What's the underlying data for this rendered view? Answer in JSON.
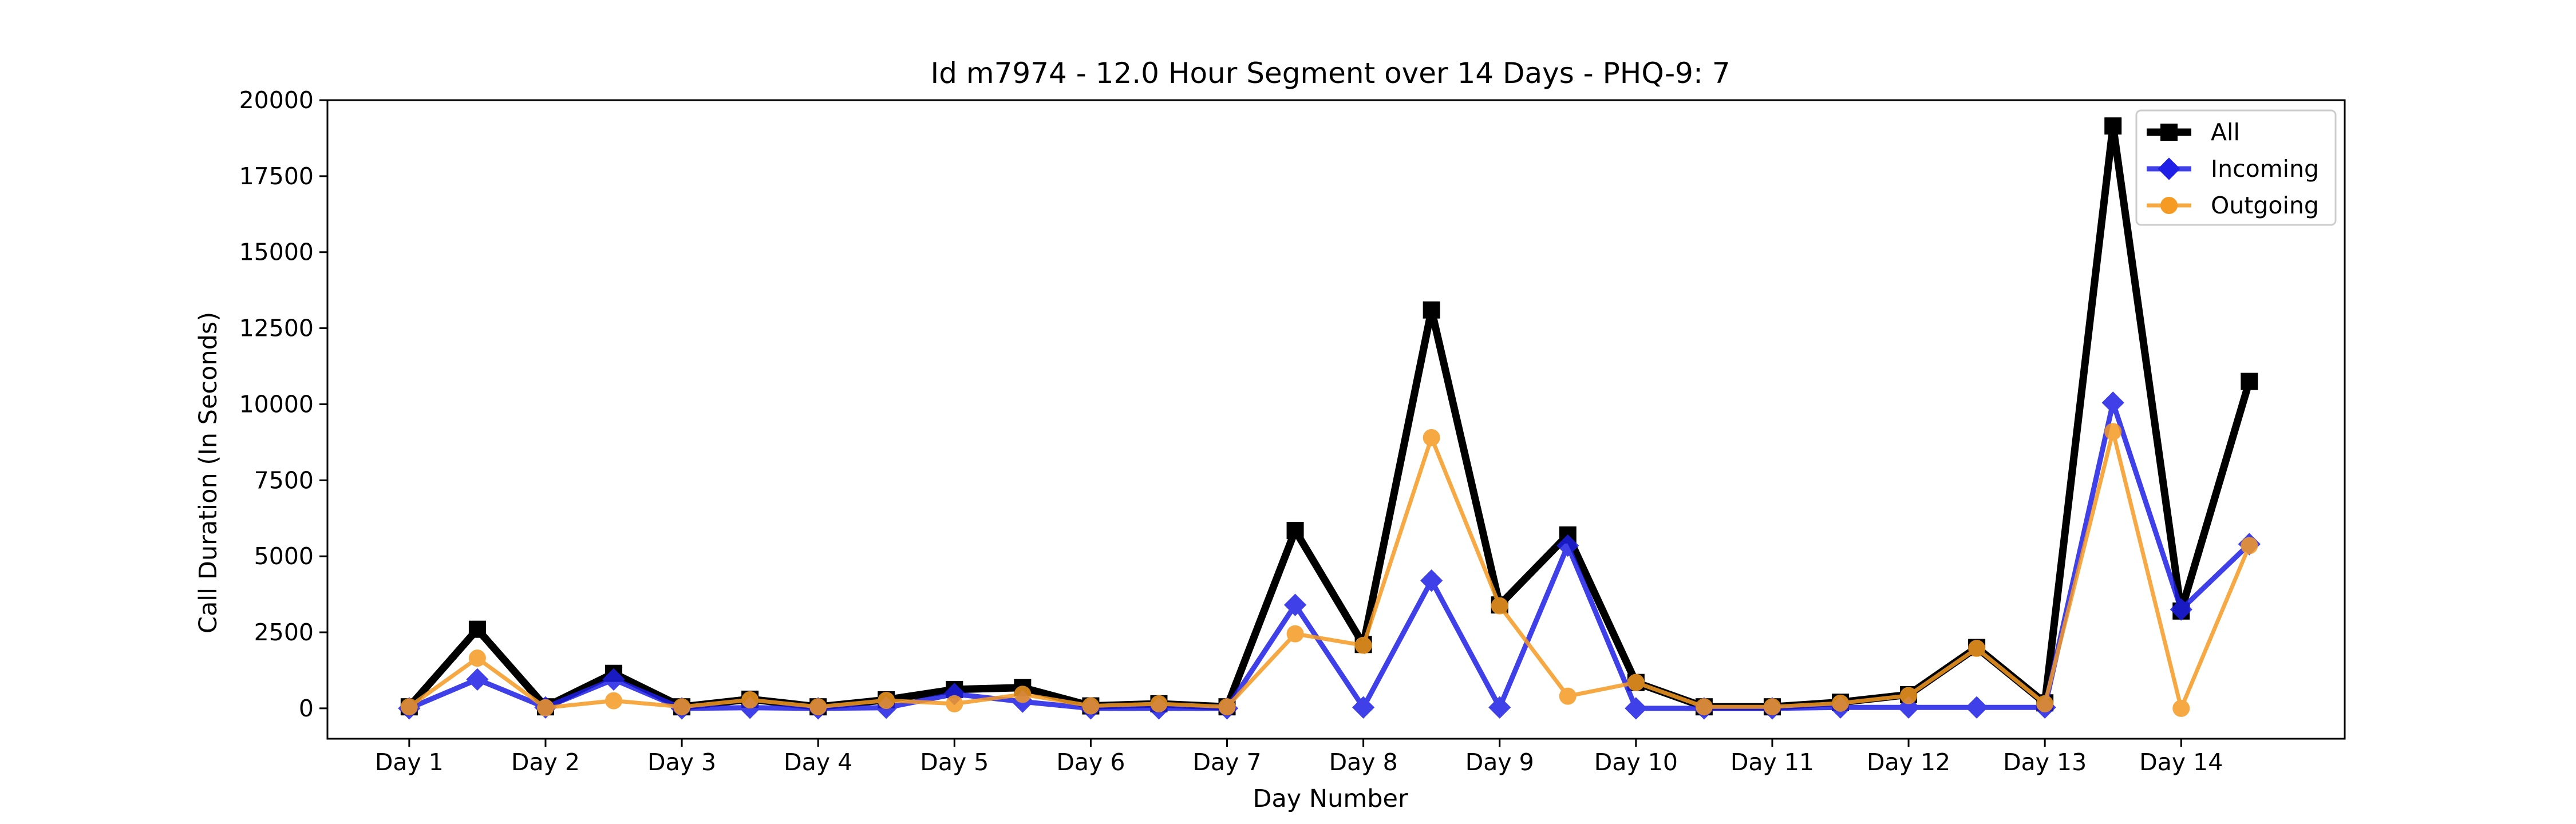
{
  "chart_data": {
    "type": "line",
    "title": "Id m7974 - 12.0 Hour Segment over 14 Days - PHQ-9: 7",
    "xlabel": "Day Number",
    "ylabel": "Call Duration (In Seconds)",
    "x": [
      1,
      1.5,
      2,
      2.5,
      3,
      3.5,
      4,
      4.5,
      5,
      5.5,
      6,
      6.5,
      7,
      7.5,
      8,
      8.5,
      9,
      9.5,
      10,
      10.5,
      11,
      11.5,
      12,
      12.5,
      13,
      13.5,
      14,
      14.5
    ],
    "xlim": [
      0.4,
      15.2
    ],
    "ylim": [
      -1000,
      20000
    ],
    "xticks": [
      {
        "value": 1,
        "label": "Day 1"
      },
      {
        "value": 2,
        "label": "Day 2"
      },
      {
        "value": 3,
        "label": "Day 3"
      },
      {
        "value": 4,
        "label": "Day 4"
      },
      {
        "value": 5,
        "label": "Day 5"
      },
      {
        "value": 6,
        "label": "Day 6"
      },
      {
        "value": 7,
        "label": "Day 7"
      },
      {
        "value": 8,
        "label": "Day 8"
      },
      {
        "value": 9,
        "label": "Day 9"
      },
      {
        "value": 10,
        "label": "Day 10"
      },
      {
        "value": 11,
        "label": "Day 11"
      },
      {
        "value": 12,
        "label": "Day 12"
      },
      {
        "value": 13,
        "label": "Day 13"
      },
      {
        "value": 14,
        "label": "Day 14"
      }
    ],
    "yticks": [
      {
        "value": 0,
        "label": "0"
      },
      {
        "value": 2500,
        "label": "2500"
      },
      {
        "value": 5000,
        "label": "5000"
      },
      {
        "value": 7500,
        "label": "7500"
      },
      {
        "value": 10000,
        "label": "10000"
      },
      {
        "value": 12500,
        "label": "12500"
      },
      {
        "value": 15000,
        "label": "15000"
      },
      {
        "value": 17500,
        "label": "17500"
      },
      {
        "value": 20000,
        "label": "20000"
      }
    ],
    "grid": false,
    "legend": "top-right",
    "series": [
      {
        "name": "All",
        "color": "#000000",
        "marker": "square",
        "values": [
          50,
          2600,
          50,
          1150,
          50,
          300,
          50,
          280,
          620,
          680,
          80,
          150,
          50,
          5850,
          2100,
          13100,
          3400,
          5700,
          850,
          50,
          50,
          200,
          450,
          2000,
          180,
          19150,
          3200,
          10750
        ]
      },
      {
        "name": "Incoming",
        "color": "#1f1fe6",
        "marker": "diamond",
        "values": [
          0,
          950,
          30,
          950,
          0,
          20,
          0,
          20,
          470,
          220,
          0,
          0,
          0,
          3400,
          30,
          4200,
          30,
          5350,
          0,
          0,
          0,
          30,
          30,
          30,
          30,
          10050,
          3250,
          5400
        ]
      },
      {
        "name": "Outgoing",
        "color": "#f59a23",
        "marker": "circle",
        "values": [
          50,
          1650,
          20,
          250,
          50,
          280,
          50,
          260,
          150,
          460,
          80,
          150,
          50,
          2450,
          2070,
          8900,
          3370,
          400,
          850,
          50,
          50,
          170,
          420,
          1970,
          150,
          9100,
          0,
          5350
        ]
      }
    ]
  }
}
